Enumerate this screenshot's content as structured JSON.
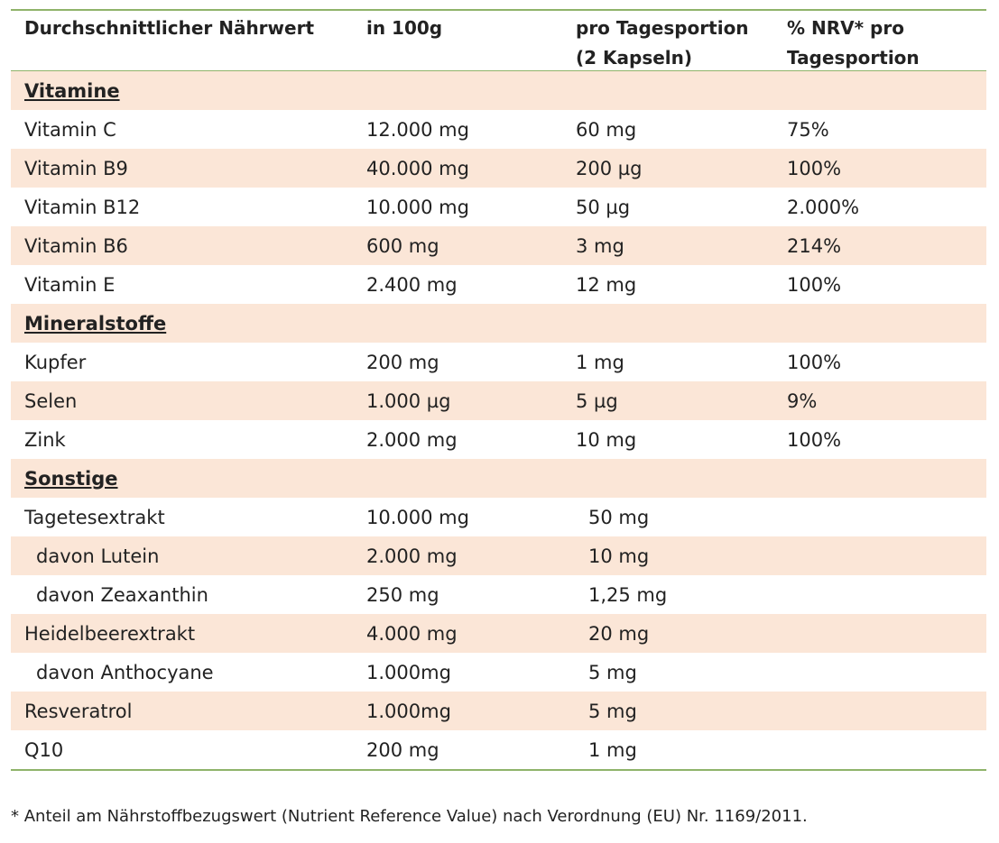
{
  "header": {
    "col1": "Durchschnittlicher Nährwert",
    "col2": "in 100g",
    "col3_line1": "pro Tagesportion",
    "col3_line2": "(2 Kapseln)",
    "col4_line1": "% NRV* pro",
    "col4_line2": "Tagesportion"
  },
  "sections": {
    "vitamine": {
      "title": "Vitamine",
      "rows": [
        {
          "name": "Vitamin C",
          "per100": "12.000 mg",
          "daily": "60 mg",
          "nrv": "75%"
        },
        {
          "name": "Vitamin B9",
          "per100": "40.000 mg",
          "daily": "200 µg",
          "nrv": "100%"
        },
        {
          "name": "Vitamin B12",
          "per100": "10.000 mg",
          "daily": "50 µg",
          "nrv": "2.000%"
        },
        {
          "name": "Vitamin B6",
          "per100": "600 mg",
          "daily": "3 mg",
          "nrv": "214%"
        },
        {
          "name": "Vitamin E",
          "per100": "2.400 mg",
          "daily": "12 mg",
          "nrv": "100%"
        }
      ]
    },
    "mineralstoffe": {
      "title": "Mineralstoffe",
      "rows": [
        {
          "name": "Kupfer",
          "per100": "200 mg",
          "daily": "1 mg",
          "nrv": "100%"
        },
        {
          "name": "Selen",
          "per100": "1.000 µg",
          "daily": "5 µg",
          "nrv": "9%"
        },
        {
          "name": "Zink",
          "per100": "2.000 mg",
          "daily": "10 mg",
          "nrv": "100%"
        }
      ]
    },
    "sonstige": {
      "title": "Sonstige",
      "rows": [
        {
          "name": "Tagetesextrakt",
          "per100": "10.000 mg",
          "daily": "50 mg",
          "nrv": ""
        },
        {
          "name": "davon Lutein",
          "per100": "2.000 mg",
          "daily": "10 mg",
          "nrv": ""
        },
        {
          "name": "davon Zeaxanthin",
          "per100": "250 mg",
          "daily": "1,25 mg",
          "nrv": ""
        },
        {
          "name": "Heidelbeerextrakt",
          "per100": "4.000 mg",
          "daily": "20 mg",
          "nrv": ""
        },
        {
          "name": "davon Anthocyane",
          "per100": "1.000mg",
          "daily": "5 mg",
          "nrv": ""
        },
        {
          "name": "Resveratrol",
          "per100": "1.000mg",
          "daily": "5 mg",
          "nrv": ""
        },
        {
          "name": "Q10",
          "per100": "200 mg",
          "daily": "1 mg",
          "nrv": ""
        }
      ]
    }
  },
  "footnote": "* Anteil am Nährstoffbezugswert (Nutrient Reference Value) nach Verordnung (EU) Nr. 1169/2011.",
  "colors": {
    "accent_line": "#8fb36a",
    "row_shade": "#fbe6d7"
  }
}
